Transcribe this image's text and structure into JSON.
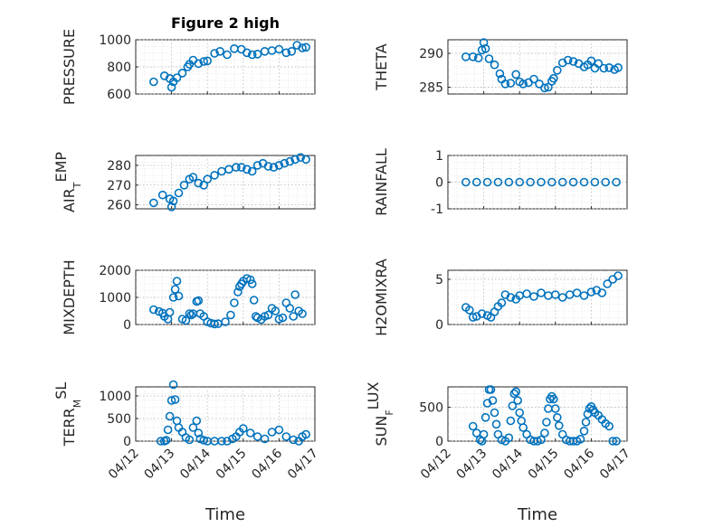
{
  "figure": {
    "title": "Figure 2 high",
    "xlabel": "Time",
    "date_ticks": [
      "04/12",
      "04/13",
      "04/14",
      "04/15",
      "04/16",
      "04/17"
    ],
    "marker_color": "#0072BD"
  },
  "chart_data": [
    {
      "type": "scatter",
      "title": "Figure 2 high",
      "ylabel": "PRESSURE",
      "ylabel_sub": "",
      "xlim": [
        "04/12",
        "04/17"
      ],
      "ylim": [
        600,
        1000
      ],
      "yticks": [
        600,
        800,
        1000
      ],
      "x": [
        0.5,
        0.8,
        0.95,
        1.0,
        1.05,
        1.15,
        1.3,
        1.45,
        1.5,
        1.6,
        1.75,
        1.9,
        2.0,
        2.2,
        2.35,
        2.55,
        2.75,
        2.95,
        3.1,
        3.25,
        3.4,
        3.6,
        3.8,
        4.0,
        4.2,
        4.35,
        4.5,
        4.65,
        4.75
      ],
      "y": [
        690,
        735,
        715,
        650,
        690,
        720,
        755,
        800,
        820,
        850,
        825,
        840,
        845,
        900,
        915,
        890,
        935,
        930,
        905,
        890,
        895,
        915,
        920,
        930,
        905,
        915,
        960,
        940,
        945
      ]
    },
    {
      "type": "scatter",
      "title": "",
      "ylabel": "THETA",
      "ylabel_sub": "",
      "xlim": [
        "04/12",
        "04/17"
      ],
      "ylim": [
        284,
        292
      ],
      "yticks": [
        285,
        290
      ],
      "x": [
        0.5,
        0.7,
        0.85,
        0.95,
        1.0,
        1.05,
        1.15,
        1.3,
        1.45,
        1.5,
        1.6,
        1.75,
        1.9,
        2.0,
        2.1,
        2.25,
        2.4,
        2.55,
        2.7,
        2.8,
        2.9,
        2.95,
        3.05,
        3.2,
        3.35,
        3.5,
        3.65,
        3.8,
        3.9,
        4.0,
        4.1,
        4.2,
        4.35,
        4.5,
        4.65,
        4.75
      ],
      "y": [
        289.5,
        289.5,
        289.3,
        290.5,
        291.6,
        290.7,
        289.2,
        288.3,
        287.0,
        286.2,
        285.5,
        285.6,
        286.9,
        285.8,
        285.5,
        285.7,
        286.2,
        285.5,
        284.9,
        285.0,
        285.9,
        286.3,
        287.5,
        288.6,
        289.0,
        288.8,
        288.5,
        288.0,
        288.3,
        288.9,
        287.8,
        288.5,
        287.8,
        287.9,
        287.6,
        287.9
      ]
    },
    {
      "type": "scatter",
      "title": "",
      "ylabel": "AIR",
      "ylabel_sub": "T",
      "ylabel_suffix": "EMP",
      "xlim": [
        "04/12",
        "04/17"
      ],
      "ylim": [
        258,
        285
      ],
      "yticks": [
        260,
        270,
        280
      ],
      "x": [
        0.5,
        0.75,
        0.95,
        1.0,
        1.05,
        1.2,
        1.35,
        1.5,
        1.6,
        1.75,
        1.9,
        2.0,
        2.2,
        2.4,
        2.6,
        2.8,
        2.95,
        3.1,
        3.25,
        3.4,
        3.55,
        3.7,
        3.85,
        4.0,
        4.15,
        4.3,
        4.45,
        4.6,
        4.75
      ],
      "y": [
        261,
        265,
        263,
        259,
        262,
        266,
        270,
        273,
        274,
        271,
        270,
        273,
        275,
        277,
        278,
        279,
        279,
        278,
        277,
        280,
        281,
        279.5,
        279,
        280,
        281,
        282,
        283,
        284,
        283
      ]
    },
    {
      "type": "scatter",
      "title": "",
      "ylabel": "RAINFALL",
      "ylabel_sub": "",
      "xlim": [
        "04/12",
        "04/17"
      ],
      "ylim": [
        -1,
        1
      ],
      "yticks": [
        -1,
        0,
        1
      ],
      "x": [
        0.5,
        0.8,
        1.1,
        1.4,
        1.7,
        2.0,
        2.3,
        2.6,
        2.9,
        3.2,
        3.5,
        3.8,
        4.1,
        4.4,
        4.7
      ],
      "y": [
        0,
        0,
        0,
        0,
        0,
        0,
        0,
        0,
        0,
        0,
        0,
        0,
        0,
        0,
        0
      ]
    },
    {
      "type": "scatter",
      "title": "",
      "ylabel": "MIXDEPTH",
      "ylabel_sub": "",
      "xlim": [
        "04/12",
        "04/17"
      ],
      "ylim": [
        0,
        2000
      ],
      "yticks": [
        0,
        1000,
        2000
      ],
      "x": [
        0.5,
        0.65,
        0.75,
        0.8,
        0.9,
        0.95,
        1.05,
        1.1,
        1.15,
        1.2,
        1.3,
        1.4,
        1.5,
        1.55,
        1.6,
        1.7,
        1.75,
        1.8,
        1.9,
        2.0,
        2.1,
        2.2,
        2.3,
        2.5,
        2.65,
        2.75,
        2.85,
        2.9,
        2.95,
        3.0,
        3.1,
        3.2,
        3.25,
        3.3,
        3.35,
        3.4,
        3.5,
        3.6,
        3.7,
        3.8,
        3.9,
        4.0,
        4.1,
        4.2,
        4.3,
        4.4,
        4.45,
        4.55,
        4.65
      ],
      "y": [
        550,
        480,
        420,
        300,
        200,
        450,
        1000,
        1300,
        1600,
        1050,
        200,
        150,
        400,
        350,
        400,
        850,
        880,
        400,
        300,
        100,
        50,
        20,
        30,
        100,
        350,
        800,
        1200,
        1400,
        1500,
        1600,
        1700,
        1650,
        1500,
        900,
        300,
        250,
        180,
        300,
        350,
        600,
        500,
        200,
        250,
        800,
        600,
        300,
        1100,
        500,
        400
      ]
    },
    {
      "type": "scatter",
      "title": "",
      "ylabel": "H2OMIXRA",
      "ylabel_sub": "",
      "xlim": [
        "04/12",
        "04/17"
      ],
      "ylim": [
        0,
        6
      ],
      "yticks": [
        0,
        5
      ],
      "x": [
        0.5,
        0.6,
        0.7,
        0.8,
        0.95,
        1.1,
        1.2,
        1.3,
        1.4,
        1.5,
        1.6,
        1.75,
        1.9,
        2.0,
        2.2,
        2.4,
        2.6,
        2.8,
        3.0,
        3.2,
        3.4,
        3.6,
        3.8,
        4.0,
        4.15,
        4.3,
        4.45,
        4.6,
        4.75
      ],
      "y": [
        1.9,
        1.6,
        0.8,
        0.9,
        1.2,
        1.0,
        0.8,
        1.4,
        2.0,
        2.4,
        3.3,
        3.0,
        2.8,
        3.2,
        3.4,
        3.1,
        3.5,
        3.2,
        3.3,
        3.0,
        3.3,
        3.5,
        3.2,
        3.6,
        3.8,
        3.5,
        4.5,
        5.0,
        5.4
      ]
    },
    {
      "type": "scatter",
      "title": "",
      "ylabel": "TERR",
      "ylabel_sub": "M",
      "ylabel_suffix": "SL",
      "xlim": [
        "04/12",
        "04/17"
      ],
      "ylim": [
        0,
        1200
      ],
      "yticks": [
        0,
        500,
        1000
      ],
      "x": [
        0.7,
        0.8,
        0.85,
        0.9,
        0.95,
        1.0,
        1.05,
        1.1,
        1.15,
        1.2,
        1.3,
        1.4,
        1.5,
        1.6,
        1.7,
        1.75,
        1.8,
        1.9,
        2.0,
        2.2,
        2.4,
        2.55,
        2.7,
        2.8,
        2.9,
        3.0,
        3.2,
        3.4,
        3.6,
        3.8,
        4.0,
        4.2,
        4.4,
        4.55,
        4.65,
        4.75
      ],
      "y": [
        0,
        0,
        20,
        250,
        550,
        900,
        1250,
        920,
        450,
        300,
        200,
        80,
        30,
        300,
        450,
        180,
        50,
        20,
        0,
        0,
        0,
        0,
        50,
        100,
        200,
        280,
        180,
        100,
        50,
        200,
        250,
        100,
        30,
        0,
        100,
        150
      ]
    },
    {
      "type": "scatter",
      "title": "",
      "ylabel": "SUN",
      "ylabel_sub": "F",
      "ylabel_suffix": "LUX",
      "xlim": [
        "04/12",
        "04/17"
      ],
      "ylim": [
        0,
        800
      ],
      "yticks": [
        0,
        500
      ],
      "x": [
        0.7,
        0.8,
        0.9,
        0.95,
        1.0,
        1.05,
        1.1,
        1.15,
        1.2,
        1.25,
        1.3,
        1.35,
        1.4,
        1.5,
        1.6,
        1.7,
        1.75,
        1.8,
        1.85,
        1.9,
        1.95,
        2.0,
        2.05,
        2.1,
        2.2,
        2.3,
        2.4,
        2.5,
        2.6,
        2.7,
        2.75,
        2.8,
        2.85,
        2.9,
        2.95,
        3.0,
        3.05,
        3.1,
        3.2,
        3.3,
        3.4,
        3.5,
        3.6,
        3.7,
        3.8,
        3.85,
        3.9,
        3.95,
        4.0,
        4.05,
        4.1,
        4.2,
        4.3,
        4.4,
        4.5,
        4.6,
        4.7
      ],
      "y": [
        220,
        120,
        20,
        0,
        100,
        350,
        560,
        760,
        760,
        600,
        420,
        250,
        100,
        20,
        0,
        50,
        300,
        520,
        700,
        730,
        600,
        420,
        300,
        200,
        100,
        20,
        0,
        0,
        20,
        120,
        280,
        480,
        620,
        660,
        620,
        480,
        350,
        230,
        100,
        20,
        0,
        0,
        0,
        30,
        150,
        280,
        400,
        480,
        510,
        460,
        420,
        380,
        320,
        260,
        220,
        0,
        0
      ]
    }
  ]
}
